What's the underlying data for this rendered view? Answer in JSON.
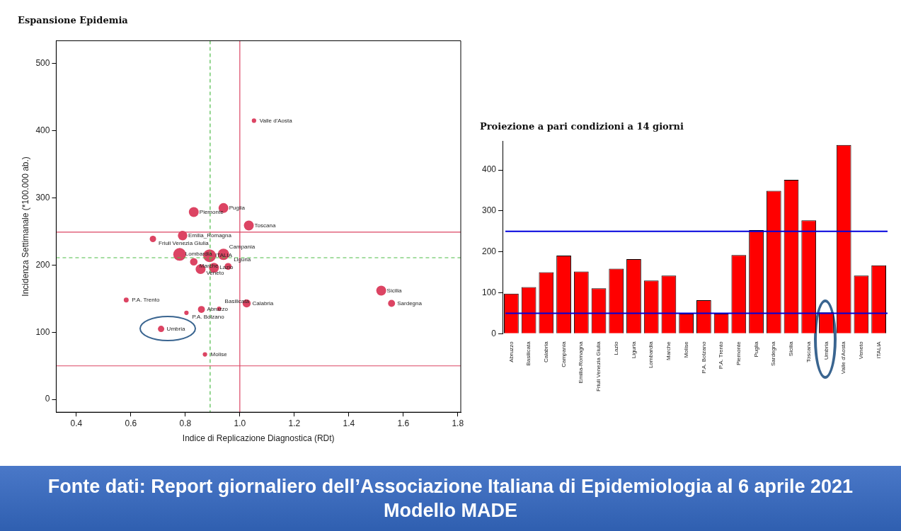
{
  "chart_data": [
    {
      "type": "bubble",
      "title": "Espansione Epidemia",
      "xlabel": "Indice di Replicazione Diagnostica (RDt)",
      "ylabel": "Incidenza Settimanale (*100.000 ab.)",
      "x": [
        1.052,
        0.94,
        0.831,
        1.033,
        0.79,
        0.681,
        0.779,
        0.889,
        0.94,
        0.831,
        0.856,
        0.905,
        0.957,
        1.519,
        1.557,
        0.583,
        1.025,
        0.859,
        0.924,
        0.804,
        0.711,
        0.872
      ],
      "series": [
        {
          "color": "#dc4463",
          "values": [
            415,
            285,
            279,
            259,
            244,
            239,
            216,
            214,
            216,
            205,
            194,
            196,
            198,
            162,
            143,
            148,
            143,
            134,
            135,
            129,
            105,
            67
          ],
          "sizes": [
            0.12,
            0.6,
            0.6,
            0.6,
            0.55,
            0.25,
            1,
            1,
            0.8,
            0.35,
            0.6,
            0.6,
            0.3,
            0.6,
            0.3,
            0.15,
            0.4,
            0.3,
            0.12,
            0.12,
            0.25,
            0.12
          ]
        }
      ],
      "xlim": [
        0.326,
        1.811
      ],
      "ylim": [
        -19,
        534
      ],
      "xticks": [
        0.4,
        0.6,
        0.8,
        {
          "value": 1,
          "label": "1.0"
        },
        1.2,
        1.4,
        1.6,
        1.8
      ],
      "yticks": [
        0,
        100,
        200,
        300,
        400,
        500
      ],
      "ref_lines": [
        {
          "axis": "x",
          "value": 1.0,
          "color": "#dc4463",
          "line_style": "solid"
        },
        {
          "axis": "x",
          "value": 0.891,
          "color": "#4cbb47",
          "line_style": "dashed"
        },
        {
          "axis": "y",
          "value": 249,
          "color": "#dc4463",
          "line_style": "solid"
        },
        {
          "axis": "y",
          "value": 50,
          "color": "#dc4463",
          "line_style": "solid"
        },
        {
          "axis": "y",
          "value": 211,
          "color": "#4cbb47",
          "line_style": "dashed"
        }
      ],
      "annotations": [
        {
          "text": "Valle d'Aosta",
          "x": 1.052,
          "y": 415
        },
        {
          "text": "Puglia",
          "x": 0.94,
          "y": 285
        },
        {
          "text": "Piemonte",
          "x": 0.831,
          "y": 279
        },
        {
          "text": "Toscana",
          "x": 1.033,
          "y": 259
        },
        {
          "text": "Emilia_Romagna",
          "x": 0.79,
          "y": 244
        },
        {
          "text": "Friuli Venezia Giulia",
          "x": 0.681,
          "y": 239
        },
        {
          "text": "Lombardia",
          "x": 0.779,
          "y": 216
        },
        {
          "text": "ITALIA",
          "x": 0.889,
          "y": 214
        },
        {
          "text": "Campania",
          "x": 0.94,
          "y": 216
        },
        {
          "text": "Marche",
          "x": 0.831,
          "y": 205
        },
        {
          "text": "Veneto",
          "x": 0.856,
          "y": 194
        },
        {
          "text": "Lazio",
          "x": 0.905,
          "y": 196
        },
        {
          "text": "Liguria",
          "x": 0.957,
          "y": 198
        },
        {
          "text": "Sicilia",
          "x": 1.519,
          "y": 162
        },
        {
          "text": "Sardegna",
          "x": 1.557,
          "y": 143
        },
        {
          "text": "P.A. Trento",
          "x": 0.583,
          "y": 148
        },
        {
          "text": "Calabria",
          "x": 1.025,
          "y": 143
        },
        {
          "text": "Abruzzo",
          "x": 0.859,
          "y": 134
        },
        {
          "text": "Basilicata",
          "x": 0.924,
          "y": 135
        },
        {
          "text": "P.A. Bolzano",
          "x": 0.804,
          "y": 129
        },
        {
          "text": "Umbria",
          "x": 0.711,
          "y": 105
        },
        {
          "text": "Molise",
          "x": 0.872,
          "y": 67
        }
      ]
    },
    {
      "type": "bar",
      "title": "Proiezione a pari condizioni a 14 giorni",
      "categories": [
        "Abruzzo",
        "Basilicata",
        "Calabria",
        "Campania",
        "Emilia-Romagna",
        "Friuli Venezia Giulia",
        "Lazio",
        "Liguria",
        "Lombardia",
        "Marche",
        "Molise",
        "P.A. Bolzano",
        "P.A. Trento",
        "Piemonte",
        "Puglia",
        "Sardegna",
        "Sicilia",
        "Toscana",
        "Umbria",
        "Valle d'Aosta",
        "Veneto",
        "ITALIA"
      ],
      "values": [
        98,
        114,
        150,
        191,
        152,
        111,
        159,
        182,
        130,
        142,
        49,
        82,
        49,
        192,
        253,
        349,
        376,
        277,
        52,
        461,
        142,
        167
      ],
      "color": "#ff0000",
      "ylim": [
        0,
        470
      ],
      "yticks": [
        0,
        100,
        200,
        300,
        400
      ],
      "ref_lines": [
        {
          "axis": "y",
          "value": 250,
          "color": "#0000dd",
          "line_style": "solid"
        },
        {
          "axis": "y",
          "value": 50,
          "color": "#0000dd",
          "line_style": "solid"
        }
      ],
      "annotations": [
        "Fonte dati: Report giornaliero dell’Associazione Italiana di Epidemiologia al 6 aprile 2021",
        "Modello MADE"
      ]
    }
  ]
}
